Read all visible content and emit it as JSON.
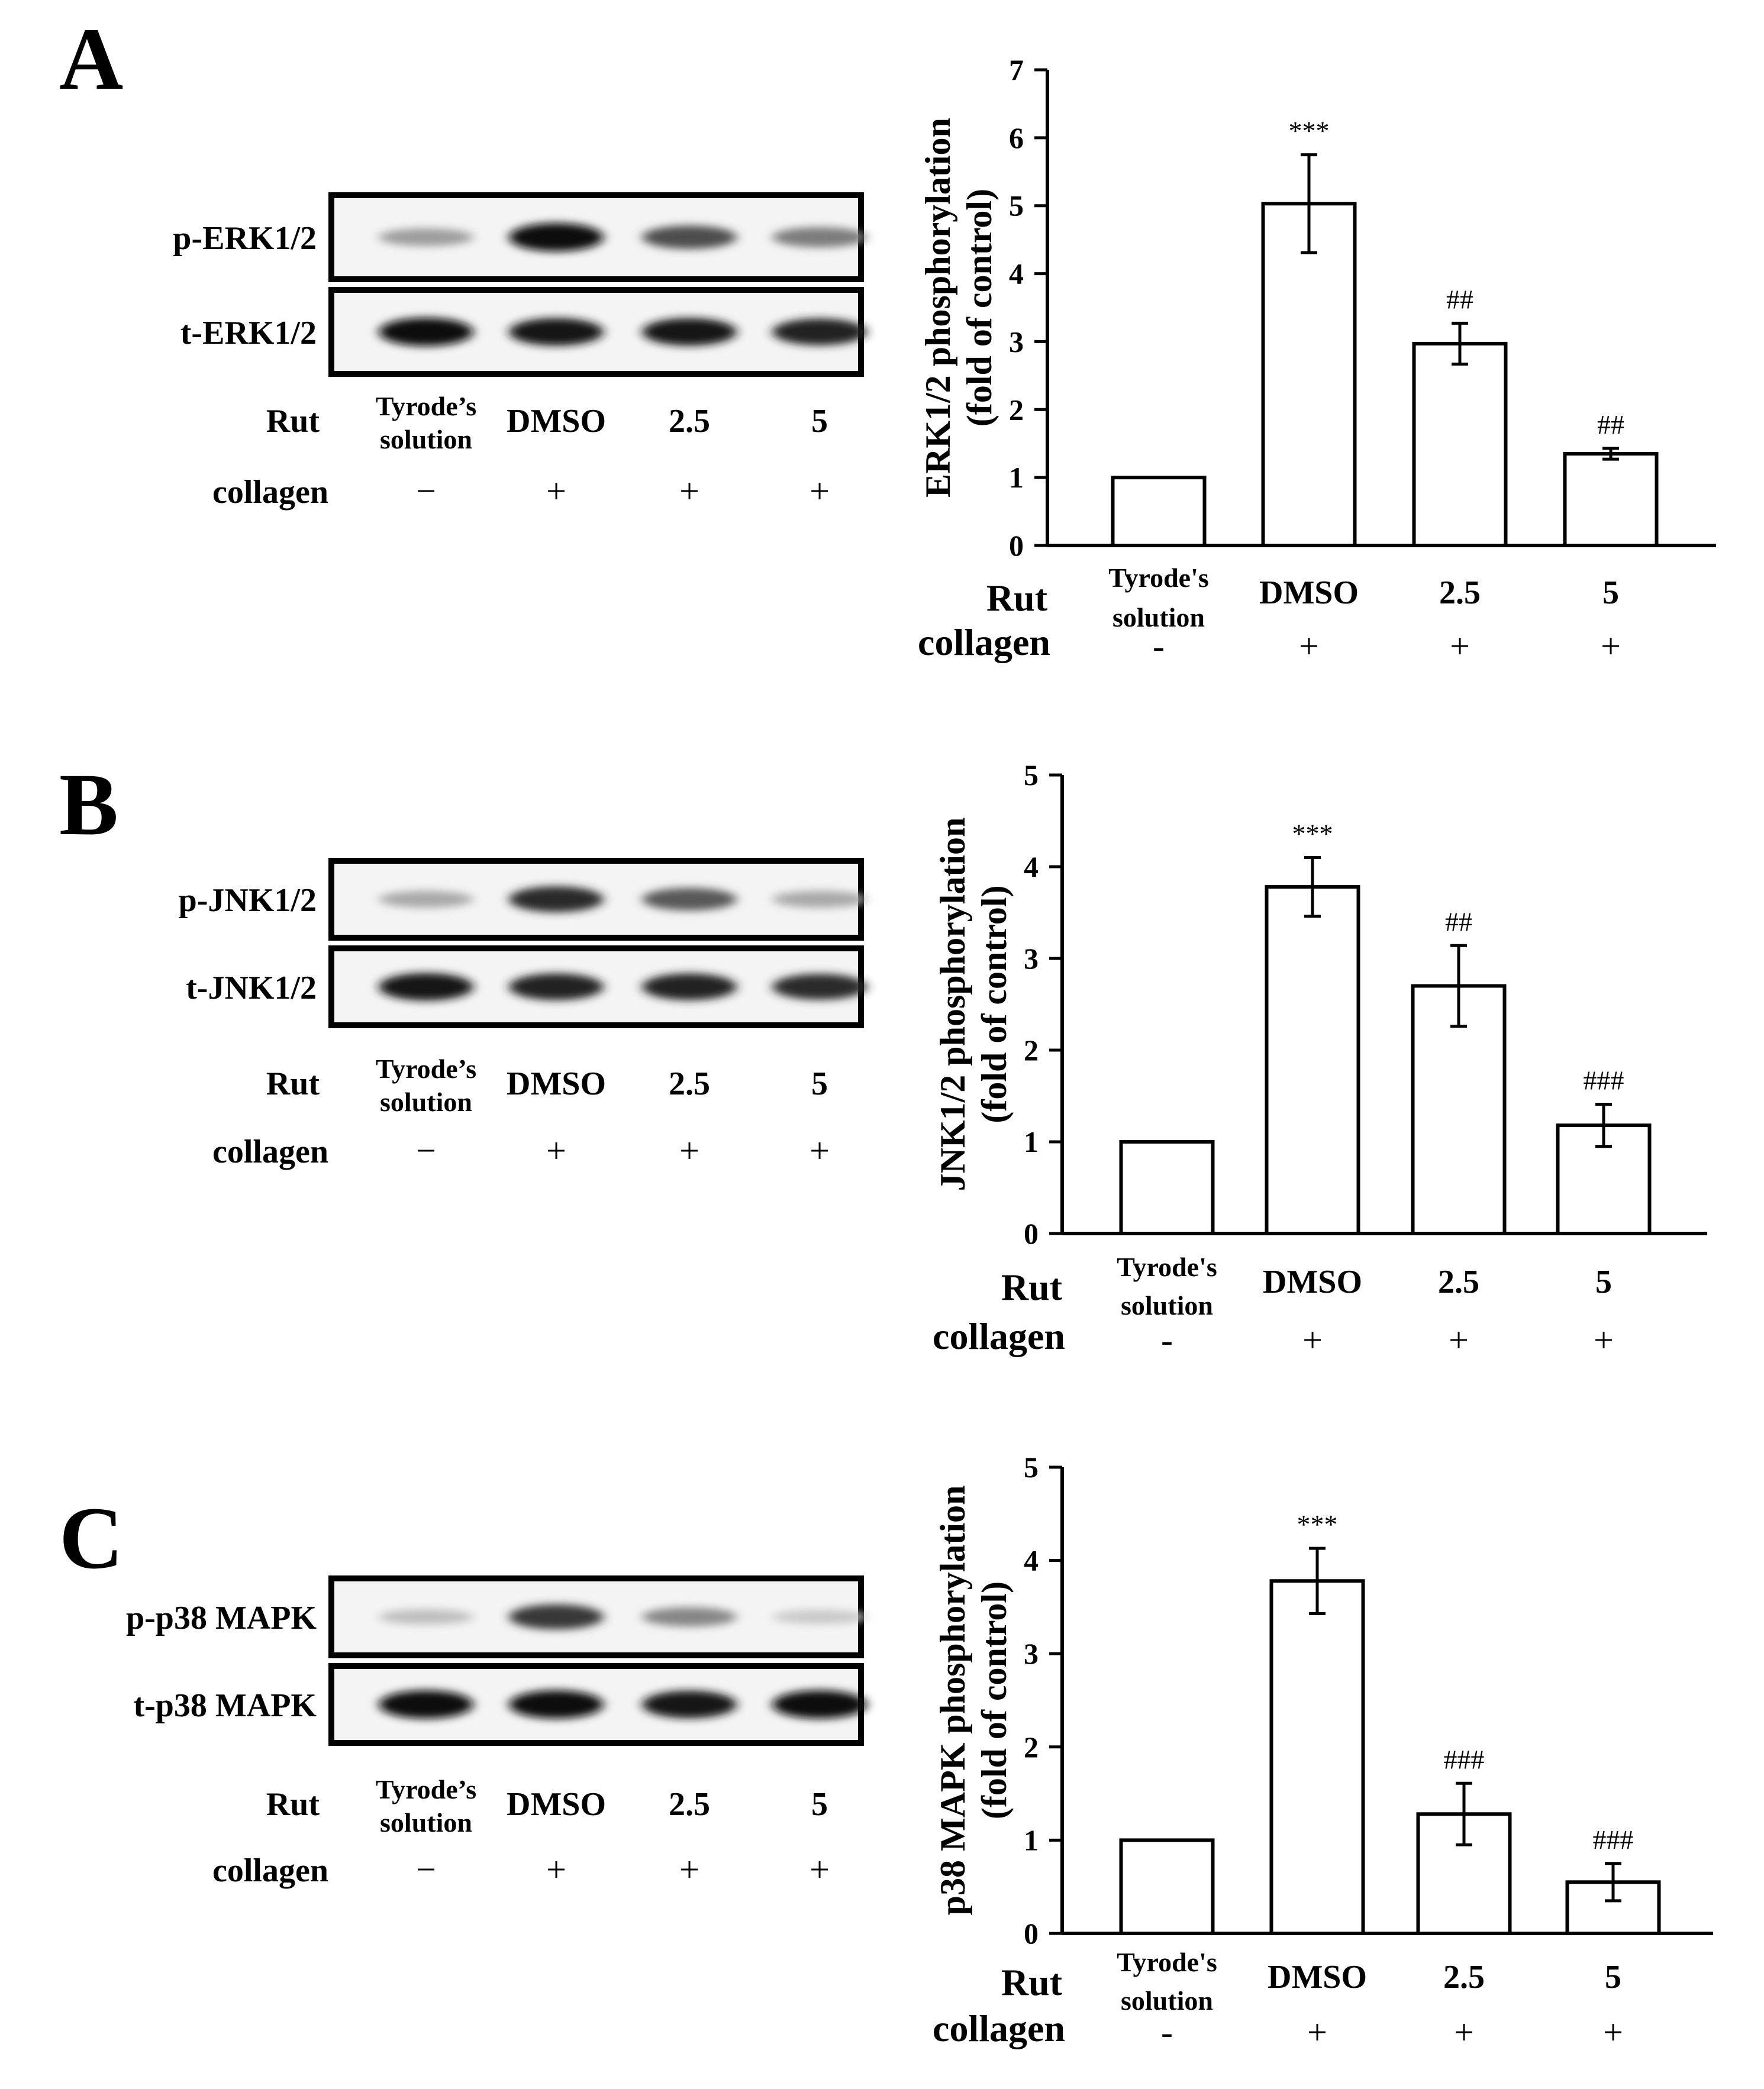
{
  "panels": [
    {
      "letter": "A",
      "blot_rows": [
        "p-ERK1/2",
        "t-ERK1/2"
      ],
      "rut_label": "Rut",
      "collagen_label": "collagen",
      "lanes": [
        {
          "rut_line1": "Tyrode’s",
          "rut_line2": "solution",
          "collagen": "−"
        },
        {
          "rut_line1": "DMSO",
          "rut_line2": "",
          "collagen": "+"
        },
        {
          "rut_line1": "2.5",
          "rut_line2": "",
          "collagen": "+"
        },
        {
          "rut_line1": "5",
          "rut_line2": "",
          "collagen": "+"
        }
      ],
      "band_intensity": {
        "phospho": [
          0.35,
          1.0,
          0.7,
          0.5
        ],
        "total": [
          1.0,
          0.95,
          0.95,
          0.9
        ]
      }
    },
    {
      "letter": "B",
      "blot_rows": [
        "p-JNK1/2",
        "t-JNK1/2"
      ],
      "rut_label": "Rut",
      "collagen_label": "collagen",
      "lanes": [
        {
          "rut_line1": "Tyrode’s",
          "rut_line2": "solution",
          "collagen": "−"
        },
        {
          "rut_line1": "DMSO",
          "rut_line2": "",
          "collagen": "+"
        },
        {
          "rut_line1": "2.5",
          "rut_line2": "",
          "collagen": "+"
        },
        {
          "rut_line1": "5",
          "rut_line2": "",
          "collagen": "+"
        }
      ],
      "band_intensity": {
        "phospho": [
          0.3,
          0.85,
          0.65,
          0.3
        ],
        "total": [
          0.95,
          0.9,
          0.9,
          0.85
        ]
      }
    },
    {
      "letter": "C",
      "blot_rows": [
        "p-p38 MAPK",
        "t-p38 MAPK"
      ],
      "rut_label": "Rut",
      "collagen_label": "collagen",
      "lanes": [
        {
          "rut_line1": "Tyrode’s",
          "rut_line2": "solution",
          "collagen": "−"
        },
        {
          "rut_line1": "DMSO",
          "rut_line2": "",
          "collagen": "+"
        },
        {
          "rut_line1": "2.5",
          "rut_line2": "",
          "collagen": "+"
        },
        {
          "rut_line1": "5",
          "rut_line2": "",
          "collagen": "+"
        }
      ],
      "band_intensity": {
        "phospho": [
          0.2,
          0.8,
          0.45,
          0.15
        ],
        "total": [
          1.0,
          1.0,
          0.95,
          1.0
        ]
      }
    }
  ],
  "chart_data": [
    {
      "type": "bar",
      "ylabel_line1": "ERK1/2 phosphorylation",
      "ylabel_line2": "(fold of control)",
      "ylim": [
        0,
        7
      ],
      "yticks": [
        0,
        1,
        2,
        3,
        4,
        5,
        6,
        7
      ],
      "rut_label": "Rut",
      "collagen_label": "collagen",
      "categories": [
        "Tyrode's solution",
        "DMSO",
        "2.5",
        "5"
      ],
      "cat_line1": [
        "Tyrode's",
        "DMSO",
        "2.5",
        "5"
      ],
      "cat_line2": [
        "solution",
        "",
        "",
        ""
      ],
      "collagen": [
        "-",
        "+",
        "+",
        "+"
      ],
      "values": [
        1.0,
        5.03,
        2.97,
        1.35
      ],
      "errors": [
        0,
        0.72,
        0.3,
        0.08
      ],
      "significance": [
        "",
        "***",
        "##",
        "##"
      ]
    },
    {
      "type": "bar",
      "ylabel_line1": "JNK1/2 phosphorylation",
      "ylabel_line2": "(fold of control)",
      "ylim": [
        0,
        5
      ],
      "yticks": [
        0,
        1,
        2,
        3,
        4,
        5
      ],
      "rut_label": "Rut",
      "collagen_label": "collagen",
      "categories": [
        "Tyrode's solution",
        "DMSO",
        "2.5",
        "5"
      ],
      "cat_line1": [
        "Tyrode's",
        "DMSO",
        "2.5",
        "5"
      ],
      "cat_line2": [
        "solution",
        "",
        "",
        ""
      ],
      "collagen": [
        "-",
        "+",
        "+",
        "+"
      ],
      "values": [
        1.0,
        3.78,
        2.7,
        1.18
      ],
      "errors": [
        0,
        0.32,
        0.44,
        0.23
      ],
      "significance": [
        "",
        "***",
        "##",
        "###"
      ]
    },
    {
      "type": "bar",
      "ylabel_line1": "p38 MAPK phosphorylation",
      "ylabel_line2": "(fold of control)",
      "ylim": [
        0,
        5
      ],
      "yticks": [
        0,
        1,
        2,
        3,
        4,
        5
      ],
      "rut_label": "Rut",
      "collagen_label": "collagen",
      "categories": [
        "Tyrode's solution",
        "DMSO",
        "2.5",
        "5"
      ],
      "cat_line1": [
        "Tyrode's",
        "DMSO",
        "2.5",
        "5"
      ],
      "cat_line2": [
        "solution",
        "",
        "",
        ""
      ],
      "collagen": [
        "-",
        "+",
        "+",
        "+"
      ],
      "values": [
        1.0,
        3.78,
        1.28,
        0.55
      ],
      "errors": [
        0,
        0.35,
        0.33,
        0.2
      ],
      "significance": [
        "",
        "***",
        "###",
        "###"
      ]
    }
  ]
}
